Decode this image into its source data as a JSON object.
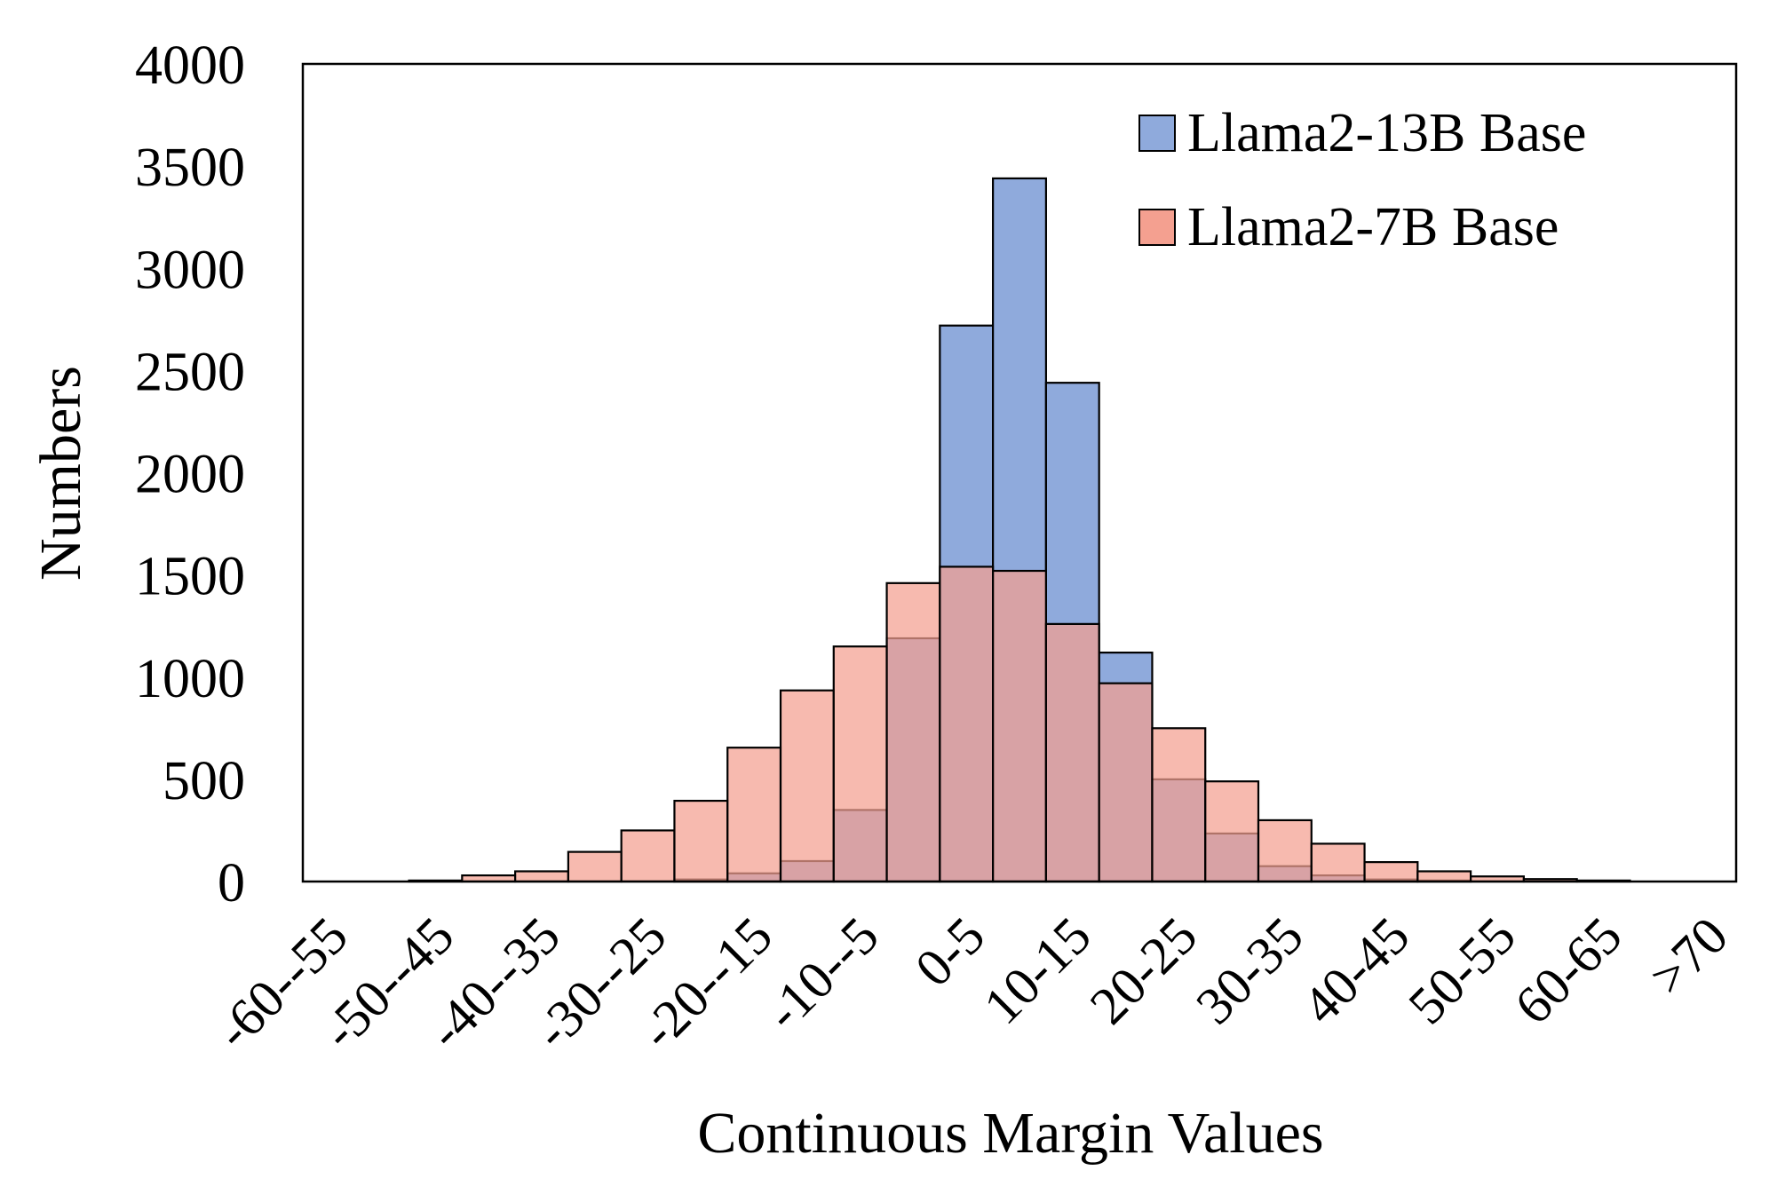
{
  "chart_data": {
    "type": "bar",
    "title": "",
    "xlabel": "Continuous Margin Values",
    "ylabel": "Numbers",
    "ylim": [
      0,
      4000
    ],
    "yticks": [
      0,
      500,
      1000,
      1500,
      2000,
      2500,
      3000,
      3500,
      4000
    ],
    "grid": false,
    "legend_position": "top-right",
    "categories": [
      "-60--55",
      "-55--50",
      "-50--45",
      "-45--40",
      "-40--35",
      "-35--30",
      "-30--25",
      "-25--20",
      "-20--15",
      "-15--10",
      "-10--5",
      "-5-0",
      "0-5",
      "5-10",
      "10-15",
      "15-20",
      "20-25",
      "25-30",
      "30-35",
      "35-40",
      "40-45",
      "45-50",
      "50-55",
      "55-60",
      "60-65",
      "65-70",
      ">70"
    ],
    "tick_labels": [
      "-60--55",
      "-50--45",
      "-40--35",
      "-30--25",
      "-20--15",
      "-10--5",
      "0-5",
      "10-15",
      "20-25",
      "30-35",
      "40-45",
      "50-55",
      "60-65",
      ">70"
    ],
    "series": [
      {
        "name": "Llama2-13B Base",
        "color": "#8faadc",
        "values": [
          0,
          0,
          0,
          0,
          0,
          0,
          0,
          10,
          40,
          100,
          350,
          1190,
          2720,
          3440,
          2440,
          1120,
          500,
          235,
          75,
          30,
          10,
          5,
          0,
          0,
          0,
          0,
          0
        ]
      },
      {
        "name": "Llama2-7B Base",
        "color": "#f4a090",
        "values": [
          0,
          0,
          5,
          30,
          50,
          145,
          250,
          395,
          655,
          935,
          1150,
          1460,
          1540,
          1520,
          1260,
          970,
          750,
          490,
          300,
          185,
          95,
          50,
          25,
          12,
          5,
          0,
          0
        ]
      }
    ]
  }
}
